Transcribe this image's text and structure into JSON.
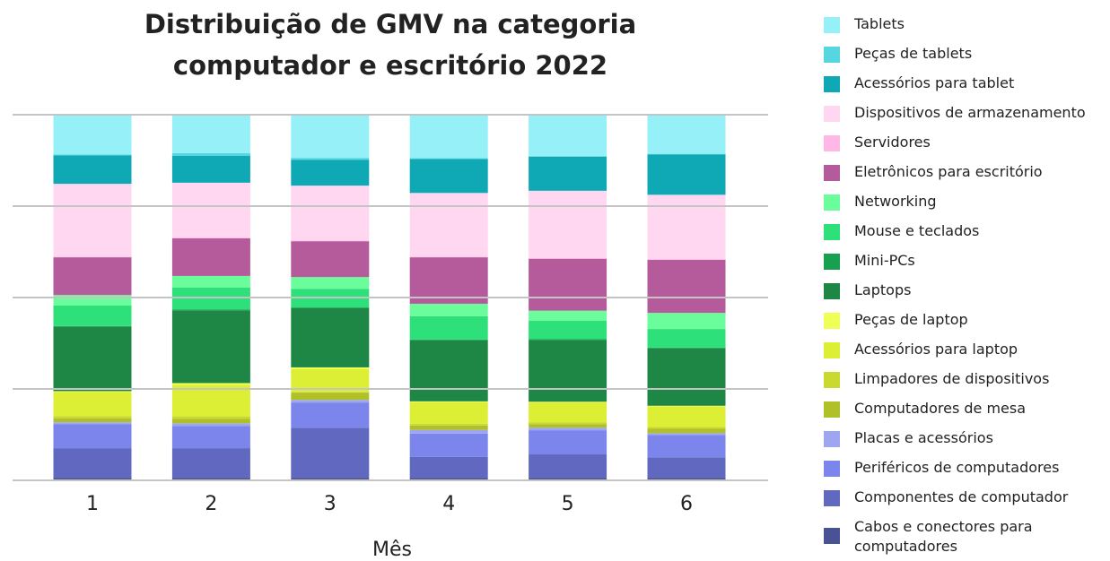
{
  "chart_data": {
    "type": "stacked_bar",
    "title": "Distribuição de GMV na categoria computador e escritório 2022",
    "x_label": "Mês",
    "categories": [
      "1",
      "2",
      "3",
      "4",
      "5",
      "6"
    ],
    "ylim": [
      0,
      100
    ],
    "yticks": [
      0,
      25,
      50,
      75,
      100
    ],
    "grid": true,
    "legend": "right",
    "series": [
      {
        "name": "Cabos e conectores para computadores",
        "color": "#4a5296",
        "values": [
          0.7,
          0.7,
          0.7,
          0.7,
          0.7,
          0.7
        ]
      },
      {
        "name": "Componentes de computador",
        "color": "#6068c0",
        "values": [
          8.1,
          8.1,
          13.7,
          5.7,
          6.4,
          5.6
        ]
      },
      {
        "name": "Periféricos de computadores",
        "color": "#7b85ec",
        "values": [
          6.6,
          6.1,
          6.9,
          6.4,
          6.6,
          6.1
        ]
      },
      {
        "name": "Placas e acessórios",
        "color": "#9ea6f2",
        "values": [
          0.5,
          0.7,
          0.7,
          1.0,
          0.7,
          0.5
        ]
      },
      {
        "name": "Computadores de mesa",
        "color": "#b0c028",
        "values": [
          1.0,
          1.2,
          2.0,
          1.2,
          1.0,
          1.2
        ]
      },
      {
        "name": "Limpadores de dispositivos",
        "color": "#c9d92f",
        "values": [
          0.7,
          0.7,
          0.2,
          0.5,
          0.5,
          0.5
        ]
      },
      {
        "name": "Acessórios para laptop",
        "color": "#dcef35",
        "values": [
          6.6,
          8.6,
          6.2,
          5.9,
          5.4,
          5.6
        ]
      },
      {
        "name": "Peças de laptop",
        "color": "#f0ff55",
        "values": [
          0.2,
          0.5,
          0.5,
          0.2,
          0.2,
          0.2
        ]
      },
      {
        "name": "Laptops",
        "color": "#1f8745",
        "values": [
          17.6,
          19.9,
          16.2,
          16.7,
          16.9,
          15.7
        ]
      },
      {
        "name": "Mini-PCs",
        "color": "#17a04f",
        "values": [
          0.2,
          0.2,
          0.2,
          0.2,
          0.2,
          0.2
        ]
      },
      {
        "name": "Mouse e teclados",
        "color": "#2ee07a",
        "values": [
          5.6,
          6.0,
          5.1,
          6.4,
          5.1,
          5.1
        ]
      },
      {
        "name": "Networking",
        "color": "#6bfc9c",
        "values": [
          2.9,
          3.2,
          3.2,
          3.4,
          2.7,
          4.4
        ]
      },
      {
        "name": "Eletrônicos para escritório",
        "color": "#b55a9b",
        "values": [
          10.3,
          10.3,
          9.8,
          12.7,
          14.2,
          14.5
        ]
      },
      {
        "name": "Servidores",
        "color": "#ffb8e6",
        "values": [
          0.2,
          0.2,
          0.2,
          0.2,
          0.2,
          0.2
        ]
      },
      {
        "name": "Dispositivos de armazenamento",
        "color": "#ffd7f1",
        "values": [
          19.9,
          15.0,
          15.0,
          17.4,
          18.4,
          17.6
        ]
      },
      {
        "name": "Acessórios para tablet",
        "color": "#0fa9b6",
        "values": [
          7.8,
          7.4,
          7.1,
          9.3,
          9.3,
          11.0
        ]
      },
      {
        "name": "Peças de tablets",
        "color": "#56d6e0",
        "values": [
          0.2,
          0.7,
          0.5,
          0.2,
          0.2,
          0.2
        ]
      },
      {
        "name": "Tablets",
        "color": "#95f0f7",
        "values": [
          10.9,
          10.5,
          11.8,
          11.8,
          11.3,
          10.8
        ]
      }
    ]
  }
}
